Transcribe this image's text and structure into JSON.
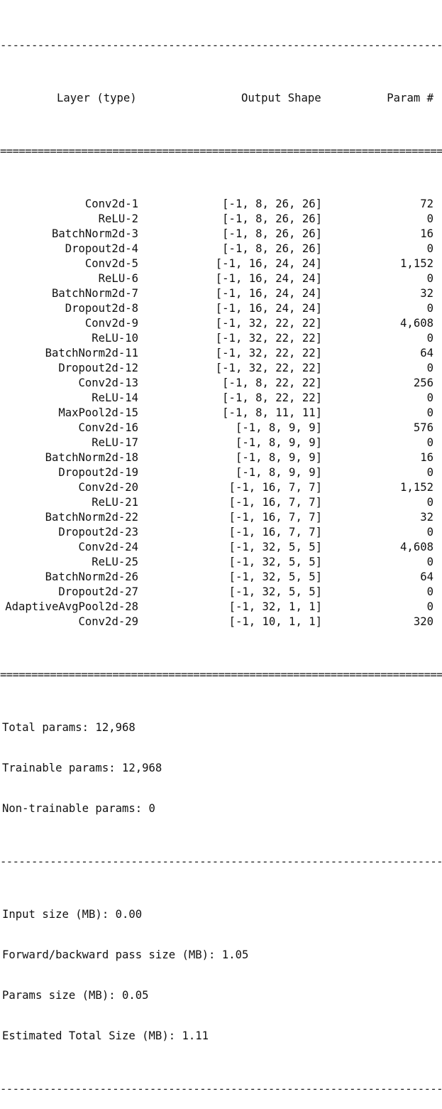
{
  "separators": {
    "dash": "-------------------------------------------------------------------------------",
    "equal": "================================================================================="
  },
  "header": {
    "layer": "Layer (type)",
    "shape": "Output Shape",
    "param": "Param #"
  },
  "layers": [
    {
      "name": "Conv2d-1",
      "shape": "[-1, 8, 26, 26]",
      "params": "72"
    },
    {
      "name": "ReLU-2",
      "shape": "[-1, 8, 26, 26]",
      "params": "0"
    },
    {
      "name": "BatchNorm2d-3",
      "shape": "[-1, 8, 26, 26]",
      "params": "16"
    },
    {
      "name": "Dropout2d-4",
      "shape": "[-1, 8, 26, 26]",
      "params": "0"
    },
    {
      "name": "Conv2d-5",
      "shape": "[-1, 16, 24, 24]",
      "params": "1,152"
    },
    {
      "name": "ReLU-6",
      "shape": "[-1, 16, 24, 24]",
      "params": "0"
    },
    {
      "name": "BatchNorm2d-7",
      "shape": "[-1, 16, 24, 24]",
      "params": "32"
    },
    {
      "name": "Dropout2d-8",
      "shape": "[-1, 16, 24, 24]",
      "params": "0"
    },
    {
      "name": "Conv2d-9",
      "shape": "[-1, 32, 22, 22]",
      "params": "4,608"
    },
    {
      "name": "ReLU-10",
      "shape": "[-1, 32, 22, 22]",
      "params": "0"
    },
    {
      "name": "BatchNorm2d-11",
      "shape": "[-1, 32, 22, 22]",
      "params": "64"
    },
    {
      "name": "Dropout2d-12",
      "shape": "[-1, 32, 22, 22]",
      "params": "0"
    },
    {
      "name": "Conv2d-13",
      "shape": "[-1, 8, 22, 22]",
      "params": "256"
    },
    {
      "name": "ReLU-14",
      "shape": "[-1, 8, 22, 22]",
      "params": "0"
    },
    {
      "name": "MaxPool2d-15",
      "shape": "[-1, 8, 11, 11]",
      "params": "0"
    },
    {
      "name": "Conv2d-16",
      "shape": "[-1, 8, 9, 9]",
      "params": "576"
    },
    {
      "name": "ReLU-17",
      "shape": "[-1, 8, 9, 9]",
      "params": "0"
    },
    {
      "name": "BatchNorm2d-18",
      "shape": "[-1, 8, 9, 9]",
      "params": "16"
    },
    {
      "name": "Dropout2d-19",
      "shape": "[-1, 8, 9, 9]",
      "params": "0"
    },
    {
      "name": "Conv2d-20",
      "shape": "[-1, 16, 7, 7]",
      "params": "1,152"
    },
    {
      "name": "ReLU-21",
      "shape": "[-1, 16, 7, 7]",
      "params": "0"
    },
    {
      "name": "BatchNorm2d-22",
      "shape": "[-1, 16, 7, 7]",
      "params": "32"
    },
    {
      "name": "Dropout2d-23",
      "shape": "[-1, 16, 7, 7]",
      "params": "0"
    },
    {
      "name": "Conv2d-24",
      "shape": "[-1, 32, 5, 5]",
      "params": "4,608"
    },
    {
      "name": "ReLU-25",
      "shape": "[-1, 32, 5, 5]",
      "params": "0"
    },
    {
      "name": "BatchNorm2d-26",
      "shape": "[-1, 32, 5, 5]",
      "params": "64"
    },
    {
      "name": "Dropout2d-27",
      "shape": "[-1, 32, 5, 5]",
      "params": "0"
    },
    {
      "name": "AdaptiveAvgPool2d-28",
      "shape": "[-1, 32, 1, 1]",
      "params": "0"
    },
    {
      "name": "Conv2d-29",
      "shape": "[-1, 10, 1, 1]",
      "params": "320"
    }
  ],
  "totals": {
    "total": "Total params: 12,968",
    "trainable": "Trainable params: 12,968",
    "non_trainable": "Non-trainable params: 0"
  },
  "sizes": {
    "input": "Input size (MB): 0.00",
    "pass": "Forward/backward pass size (MB): 1.05",
    "params": "Params size (MB): 0.05",
    "total": "Estimated Total Size (MB): 1.11"
  }
}
